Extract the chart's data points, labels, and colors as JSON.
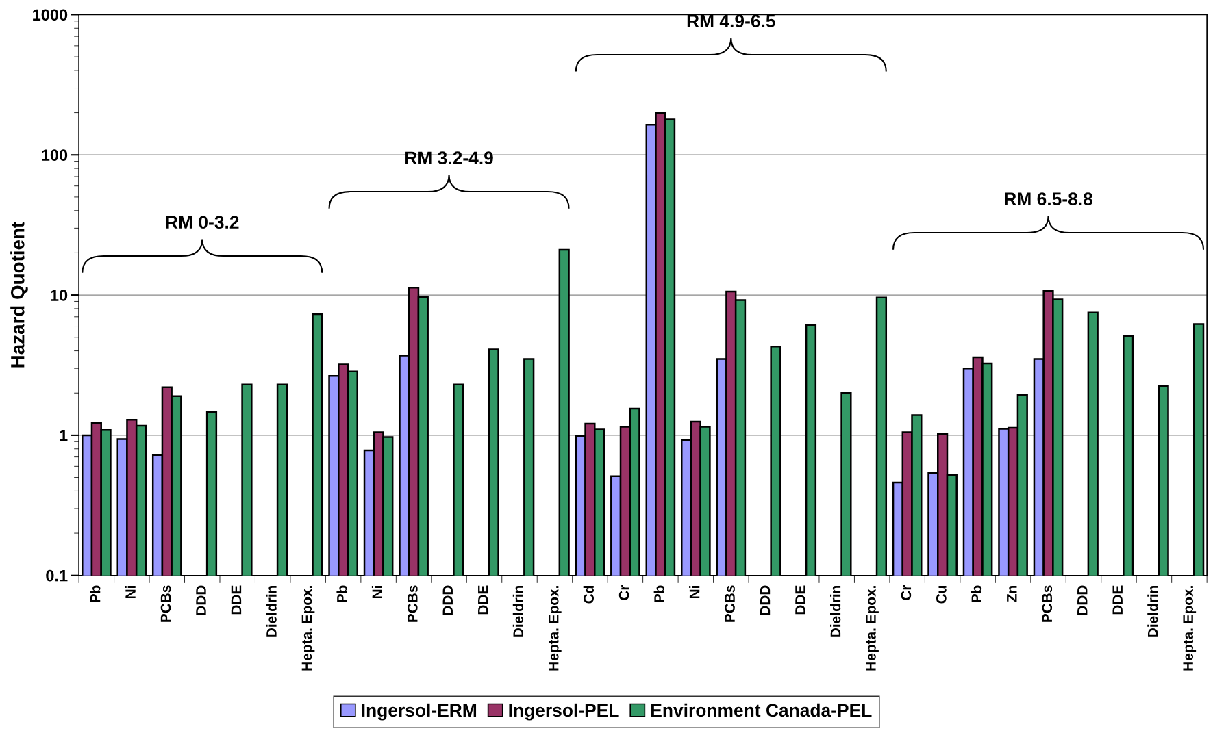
{
  "chart_data": {
    "type": "bar",
    "ylabel": "Hazard Quotient",
    "categories": [
      "Pb",
      "Ni",
      "PCBs",
      "DDD",
      "DDE",
      "Dieldrin",
      "Hepta. Epox.",
      "Pb",
      "Ni",
      "PCBs",
      "DDD",
      "DDE",
      "Dieldrin",
      "Hepta. Epox.",
      "Cd",
      "Cr",
      "Pb",
      "Ni",
      "PCBs",
      "DDD",
      "DDE",
      "Dieldrin",
      "Hepta. Epox.",
      "Cr",
      "Cu",
      "Pb",
      "Zn",
      "PCBs",
      "DDD",
      "DDE",
      "Dieldrin",
      "Hepta. Epox."
    ],
    "series": [
      {
        "name": "Ingersol-ERM",
        "color": "#9999ff",
        "values": [
          1.0,
          0.94,
          0.72,
          null,
          null,
          null,
          null,
          2.65,
          0.78,
          3.7,
          null,
          null,
          null,
          null,
          0.99,
          0.51,
          164,
          0.92,
          3.5,
          null,
          null,
          null,
          null,
          0.46,
          0.54,
          3.0,
          1.11,
          3.5,
          null,
          null,
          null,
          null
        ]
      },
      {
        "name": "Ingersol-PEL",
        "color": "#993366",
        "values": [
          1.22,
          1.29,
          2.2,
          null,
          null,
          null,
          null,
          3.2,
          1.05,
          11.3,
          null,
          null,
          null,
          null,
          1.21,
          1.15,
          199,
          1.25,
          10.6,
          null,
          null,
          null,
          null,
          1.05,
          1.02,
          3.6,
          1.13,
          10.7,
          null,
          null,
          null,
          null
        ]
      },
      {
        "name": "Environment Canada-PEL",
        "color": "#339966",
        "values": [
          1.09,
          1.17,
          1.9,
          1.46,
          2.3,
          2.3,
          7.3,
          2.85,
          0.97,
          9.7,
          2.3,
          4.1,
          3.5,
          21,
          1.1,
          1.55,
          179,
          1.15,
          9.2,
          4.3,
          6.1,
          2.0,
          9.6,
          1.39,
          0.52,
          3.25,
          1.94,
          9.3,
          7.5,
          5.1,
          2.25,
          6.2
        ]
      }
    ],
    "log": true,
    "ylim": [
      0.1,
      1000
    ],
    "yticks": [
      0.1,
      1,
      10,
      100,
      1000
    ],
    "grid": "y",
    "legend": "bottom",
    "annotations": [
      "RM 0-3.2",
      "RM 3.2-4.9",
      "RM 4.9-6.5",
      "RM 6.5-8.8"
    ]
  }
}
